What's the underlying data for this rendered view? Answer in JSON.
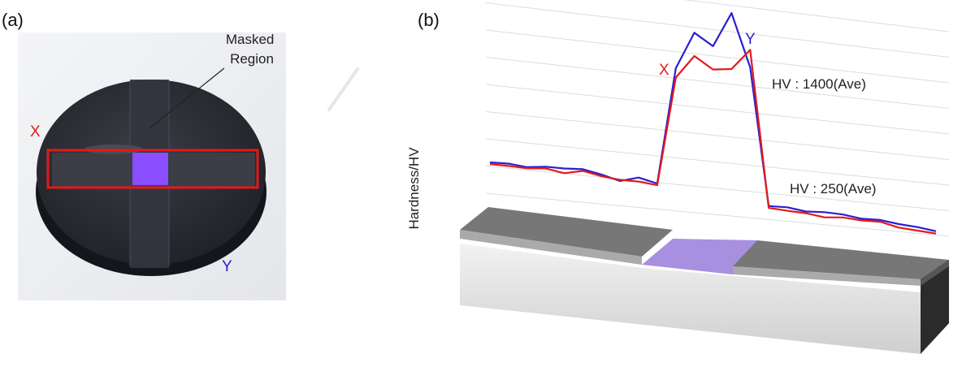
{
  "panel_a": {
    "label": "(a)",
    "masked_region_label": [
      "Masked",
      "Region"
    ],
    "x_label": "X",
    "y_label": "Y"
  },
  "panel_b": {
    "label": "(b)",
    "y_axis_label": "Hardness/HV",
    "x_label": "X",
    "y_label": "Y",
    "annotation_high": "HV : 1400(Ave)",
    "annotation_low": "HV : 250(Ave)"
  },
  "colors": {
    "x_line": "#e31a1a",
    "y_line": "#2a1fd0",
    "masked": "#8a4dff",
    "sample": "#2c2d35",
    "specimen_top": "#777777"
  },
  "chart_data": {
    "type": "line",
    "x_label": "X",
    "y_label": "Y",
    "ylabel": "Hardness/HV",
    "series": [
      {
        "name": "X",
        "values": [
          250,
          250,
          245,
          260,
          235,
          270,
          240,
          225,
          225,
          210,
          1150,
          1350,
          1250,
          1270,
          1450,
          110,
          100,
          95,
          75,
          90,
          80,
          85,
          50,
          40,
          30
        ]
      },
      {
        "name": "Y",
        "values": [
          265,
          270,
          255,
          275,
          275,
          285,
          255,
          215,
          260,
          225,
          1230,
          1550,
          1450,
          1750,
          1300,
          125,
          130,
          110,
          120,
          115,
          95,
          100,
          80,
          70,
          50
        ]
      }
    ]
  }
}
